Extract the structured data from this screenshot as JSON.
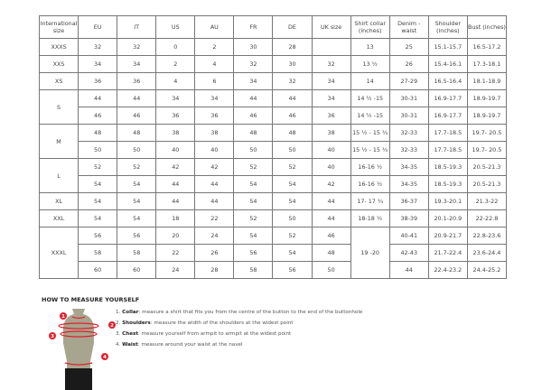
{
  "headers": [
    "International size",
    "EU",
    "IT",
    "US",
    "AU",
    "FR",
    "DE",
    "UK size",
    "Shirt collar (inches)",
    "Denim - waist",
    "Shoulder (inches)",
    "Bust (inches)"
  ],
  "groups": [
    {
      "size": "XXXS",
      "rows": [
        [
          "32",
          "32",
          "0",
          "2",
          "30",
          "28",
          "",
          "13",
          "25",
          "15.1-15.7",
          "16.5-17.2"
        ]
      ]
    },
    {
      "size": "XXS",
      "rows": [
        [
          "34",
          "34",
          "2",
          "4",
          "32",
          "30",
          "32",
          "13 ½",
          "26",
          "15.4-16.1",
          "17.3-18.1"
        ]
      ]
    },
    {
      "size": "XS",
      "rows": [
        [
          "36",
          "36",
          "4",
          "6",
          "34",
          "32",
          "34",
          "14",
          "27-29",
          "16.5-16.4",
          "18.1-18.9"
        ]
      ]
    },
    {
      "size": "S",
      "rows": [
        [
          "44",
          "44",
          "34",
          "34",
          "44",
          "44",
          "34",
          "14 ½ -15",
          "30-31",
          "16.9-17.7",
          "18.9-19.7"
        ],
        [
          "46",
          "46",
          "36",
          "36",
          "46",
          "46",
          "36",
          "14 ½ -15",
          "30-31",
          "16.9-17.7",
          "18.9-19.7"
        ]
      ]
    },
    {
      "size": "M",
      "rows": [
        [
          "48",
          "48",
          "38",
          "38",
          "48",
          "48",
          "38",
          "15 ½ - 15 ¾",
          "32-33",
          "17.7-18.5",
          "19.7- 20.5"
        ],
        [
          "50",
          "50",
          "40",
          "40",
          "50",
          "50",
          "40",
          "15 ½ - 15 ¾",
          "32-33",
          "17.7-18.5",
          "19.7- 20.5"
        ]
      ]
    },
    {
      "size": "L",
      "rows": [
        [
          "52",
          "52",
          "42",
          "42",
          "52",
          "52",
          "40",
          "16-16 ½",
          "34-35",
          "18.5-19.3",
          "20.5-21.3"
        ],
        [
          "54",
          "54",
          "44",
          "44",
          "54",
          "54",
          "42",
          "16-16 ½",
          "34-35",
          "18.5-19.3",
          "20.5-21.3"
        ]
      ]
    },
    {
      "size": "XL",
      "rows": [
        [
          "54",
          "54",
          "44",
          "44",
          "54",
          "54",
          "44",
          "17- 17 ¾",
          "36-37",
          "19.3-20.1",
          "21.3-22"
        ]
      ]
    },
    {
      "size": "XXL",
      "rows": [
        [
          "54",
          "54",
          "18",
          "22",
          "52",
          "50",
          "44",
          "18-18 ½",
          "38-39",
          "20.1-20.9",
          "22-22.8"
        ]
      ]
    },
    {
      "size": "XXXL",
      "collar": "19 -20",
      "rows": [
        [
          "56",
          "56",
          "20",
          "24",
          "54",
          "52",
          "46",
          "40-41",
          "20.9-21.7",
          "22.8-23.6"
        ],
        [
          "58",
          "58",
          "22",
          "26",
          "56",
          "54",
          "48",
          "42-43",
          "21.7-22.4",
          "23.6-24.4"
        ],
        [
          "60",
          "60",
          "24",
          "28",
          "58",
          "56",
          "50",
          "44",
          "22.4-23.2",
          "24.4-25.2"
        ]
      ]
    }
  ],
  "measure": {
    "title": "HOW TO MEASURE YOURSELF",
    "steps": [
      {
        "num": "1.",
        "term": "Collar",
        "text": ": measure a shirt that fits you from the centre of the button to the end of the buttonhole"
      },
      {
        "num": "2.",
        "term": "Shoulders",
        "text": ": measure the width of the shoulders at the widest point"
      },
      {
        "num": "3.",
        "term": "Chest",
        "text": ": measure yourself from armpit to armpit at the widest point"
      },
      {
        "num": "4.",
        "term": "Waist",
        "text": ": measure around your waist at the navel"
      }
    ],
    "markers": [
      "1",
      "2",
      "3",
      "4"
    ]
  },
  "colors": {
    "marker": "#e0202e",
    "torso": "#a8a58e",
    "shorts": "#1a1a1a"
  }
}
